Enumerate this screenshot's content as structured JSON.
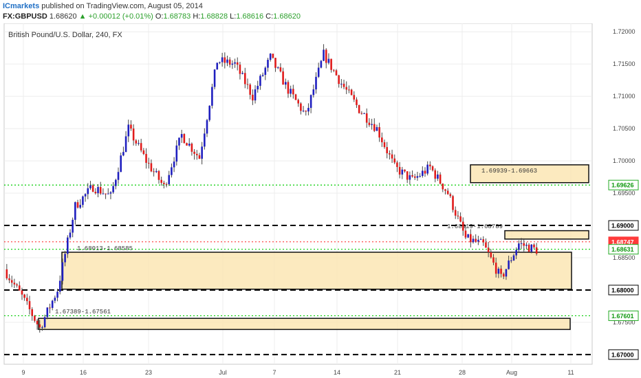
{
  "header": {
    "brand": "ICmarkets",
    "published_text": "published on TradingView.com, August 05, 2014",
    "symbol": "FX:GBPUSD",
    "last": "1.68620",
    "change_arrow": "▲",
    "change": "+0.00012 (+0.01%)",
    "o_label": "O:",
    "o_value": "1.68783",
    "h_label": "H:",
    "h_value": "1.68828",
    "l_label": "L:",
    "l_value": "1.68616",
    "c_label": "C:",
    "c_value": "1.68620"
  },
  "chart_data": {
    "type": "candlestick",
    "title": "British Pound/U.S. Dollar, 240, FX",
    "ylim": [
      1.6685,
      1.7213
    ],
    "grid": true,
    "x_tick_labels": [
      "9",
      "16",
      "23",
      "Jul",
      "7",
      "14",
      "21",
      "28",
      "Aug",
      "11"
    ],
    "y_tick_labels": [
      "1.72000",
      "1.71500",
      "1.71000",
      "1.70500",
      "1.70000",
      "1.69500",
      "1.68500",
      "1.67500"
    ],
    "price_tags": [
      {
        "text": "1.69000",
        "value": 1.69,
        "style": "black-outline"
      },
      {
        "text": "1.68747",
        "value": 1.68747,
        "style": "red"
      },
      {
        "text": "1.68631",
        "value": 1.68631,
        "style": "green-outline"
      },
      {
        "text": "1.69626",
        "value": 1.69626,
        "style": "green-outline"
      },
      {
        "text": "1.68000",
        "value": 1.68,
        "style": "black-outline"
      },
      {
        "text": "1.67601",
        "value": 1.67601,
        "style": "green-outline"
      },
      {
        "text": "1.67000",
        "value": 1.67,
        "style": "black-outline"
      }
    ],
    "horizontal_lines": [
      {
        "value": 1.69,
        "color": "#000000",
        "style": "dashed"
      },
      {
        "value": 1.68,
        "color": "#000000",
        "style": "dashed"
      },
      {
        "value": 1.67,
        "color": "#000000",
        "style": "dashed"
      },
      {
        "value": 1.69626,
        "color": "#00cc00",
        "style": "dotted"
      },
      {
        "value": 1.68631,
        "color": "#00cc00",
        "style": "dotted"
      },
      {
        "value": 1.67601,
        "color": "#00cc00",
        "style": "dotted"
      },
      {
        "value": 1.68747,
        "color": "#ff3333",
        "style": "dotted"
      }
    ],
    "zones": [
      {
        "label": "1.69939-1.69663",
        "top": 1.69939,
        "bottom": 1.69663
      },
      {
        "label": "",
        "top": 1.68919,
        "bottom": 1.68789
      },
      {
        "label": "1.68919-1.68789",
        "top": null,
        "bottom": null
      },
      {
        "label": "1.68013-1.68585",
        "top": 1.68585,
        "bottom": 1.68013
      },
      {
        "label": "1.67389-1.67561",
        "top": 1.67561,
        "bottom": 1.67389
      }
    ],
    "series": [
      {
        "segment": 1,
        "from": 1.6832,
        "to": 1.679
      },
      {
        "segment": 2,
        "from": 1.679,
        "to": 1.6741
      },
      {
        "segment": 3,
        "from": 1.6741,
        "to": 1.68
      },
      {
        "segment": 4,
        "from": 1.68,
        "to": 1.693
      },
      {
        "segment": 5,
        "from": 1.693,
        "to": 1.696
      },
      {
        "segment": 6,
        "from": 1.696,
        "to": 1.6945
      },
      {
        "segment": 7,
        "from": 1.6945,
        "to": 1.705
      },
      {
        "segment": 8,
        "from": 1.705,
        "to": 1.7
      },
      {
        "segment": 9,
        "from": 1.7,
        "to": 1.696
      },
      {
        "segment": 10,
        "from": 1.696,
        "to": 1.704
      },
      {
        "segment": 11,
        "from": 1.704,
        "to": 1.7005
      },
      {
        "segment": 12,
        "from": 1.7005,
        "to": 1.7155
      },
      {
        "segment": 13,
        "from": 1.7155,
        "to": 1.715
      },
      {
        "segment": 14,
        "from": 1.715,
        "to": 1.71
      },
      {
        "segment": 15,
        "from": 1.71,
        "to": 1.716
      },
      {
        "segment": 16,
        "from": 1.716,
        "to": 1.711
      },
      {
        "segment": 17,
        "from": 1.711,
        "to": 1.707
      },
      {
        "segment": 18,
        "from": 1.707,
        "to": 1.7165
      },
      {
        "segment": 19,
        "from": 1.7165,
        "to": 1.712
      },
      {
        "segment": 20,
        "from": 1.712,
        "to": 1.708
      },
      {
        "segment": 21,
        "from": 1.708,
        "to": 1.705
      },
      {
        "segment": 22,
        "from": 1.705,
        "to": 1.699
      },
      {
        "segment": 23,
        "from": 1.699,
        "to": 1.697
      },
      {
        "segment": 24,
        "from": 1.697,
        "to": 1.699
      },
      {
        "segment": 25,
        "from": 1.699,
        "to": 1.695
      },
      {
        "segment": 26,
        "from": 1.695,
        "to": 1.688
      },
      {
        "segment": 27,
        "from": 1.688,
        "to": 1.687
      },
      {
        "segment": 28,
        "from": 1.687,
        "to": 1.6818
      },
      {
        "segment": 29,
        "from": 1.6818,
        "to": 1.6872
      },
      {
        "segment": 30,
        "from": 1.6872,
        "to": 1.6862
      }
    ]
  }
}
